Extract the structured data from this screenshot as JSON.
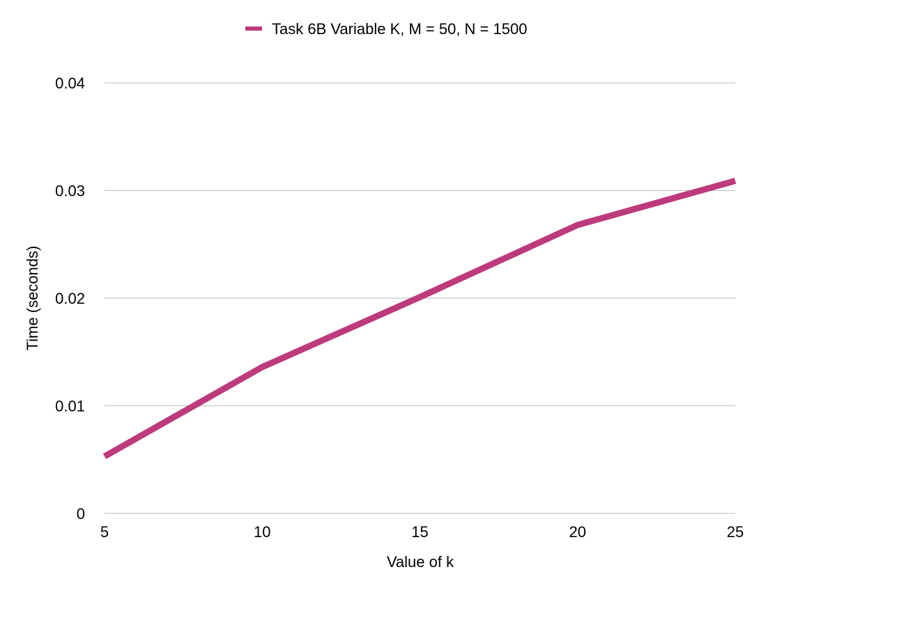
{
  "chart_data": {
    "type": "line",
    "x": [
      5,
      10,
      15,
      20,
      25
    ],
    "series": [
      {
        "name": "Task 6B Variable K, M = 50, N = 1500",
        "values": [
          0.0053,
          0.0136,
          0.0201,
          0.0268,
          0.0309
        ],
        "color": "#BD3A7C"
      }
    ],
    "xlabel": "Value of k",
    "ylabel": "Time (seconds)",
    "xlim": [
      5,
      25
    ],
    "ylim": [
      0,
      0.04
    ],
    "x_ticks": [
      "5",
      "10",
      "15",
      "20",
      "25"
    ],
    "y_ticks": [
      "0",
      "0.01",
      "0.02",
      "0.03",
      "0.04"
    ],
    "grid": "horizontal",
    "legend_position": "top",
    "gridline_color": "#BBBBBB"
  }
}
